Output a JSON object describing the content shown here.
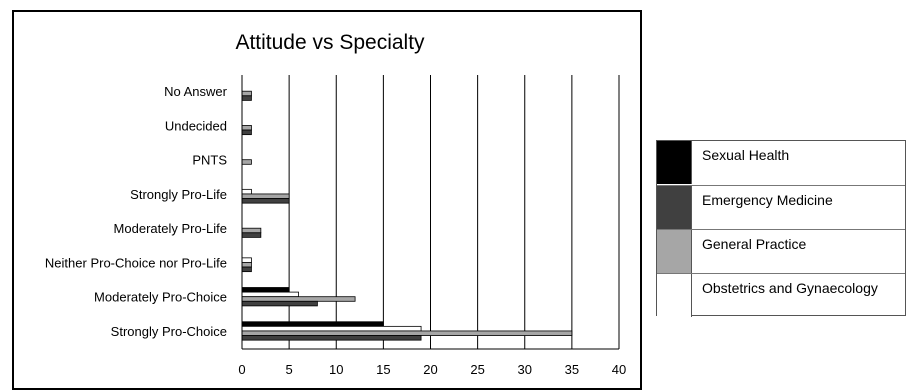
{
  "chart_data": {
    "type": "bar",
    "orientation": "horizontal",
    "title": "Attitude vs Specialty",
    "xlabel": "",
    "ylabel": "",
    "xlim": [
      0,
      40
    ],
    "xticks": [
      0,
      5,
      10,
      15,
      20,
      25,
      30,
      35,
      40
    ],
    "grid": "vertical",
    "legend_position": "right",
    "categories": [
      "No Answer",
      "Undecided",
      "PNTS",
      "Strongly Pro-Life",
      "Moderately Pro-Life",
      "Neither Pro-Choice nor Pro-Life",
      "Moderately Pro-Choice",
      "Strongly Pro-Choice"
    ],
    "series": [
      {
        "name": "Sexual Health",
        "color": "#000000",
        "values": [
          0,
          0,
          0,
          0,
          0,
          0,
          5,
          15
        ]
      },
      {
        "name": "Emergency Medicine",
        "color": "#404040",
        "values": [
          1,
          1,
          0,
          5,
          2,
          1,
          8,
          19
        ]
      },
      {
        "name": "General Practice",
        "color": "#a6a6a6",
        "values": [
          1,
          1,
          1,
          5,
          2,
          1,
          12,
          35
        ]
      },
      {
        "name": "Obstetrics and Gynaecology",
        "color": "#ffffff",
        "values": [
          0,
          0,
          0,
          1,
          0,
          1,
          6,
          19
        ]
      }
    ]
  }
}
